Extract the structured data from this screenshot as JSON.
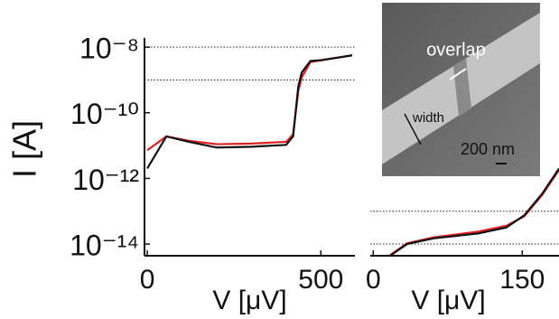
{
  "chart_data": [
    {
      "type": "line",
      "yscale": "log",
      "ylabel": "I [A]",
      "xlabel": "V [μV]",
      "xlim": [
        -8,
        598
      ],
      "xticks": [
        0,
        500
      ],
      "ylim": [
        4.4e-15,
        1.9e-08
      ],
      "yticks": [
        {
          "value": 1e-08,
          "label": "10⁻⁸"
        },
        {
          "value": 1e-10,
          "label": "10⁻¹⁰"
        },
        {
          "value": 1e-12,
          "label": "10⁻¹²"
        },
        {
          "value": 1e-14,
          "label": "10⁻¹⁴"
        }
      ],
      "grid_y": [
        1e-08,
        1e-09
      ],
      "series": [
        {
          "color": "#e02020",
          "x": [
            0,
            55,
            120,
            200,
            300,
            400,
            420,
            435,
            445,
            470,
            590
          ],
          "values": [
            7.2e-12,
            1.9e-11,
            1.4e-11,
            1.1e-11,
            1.15e-11,
            1.3e-11,
            2.2e-11,
            4.6e-10,
            1.2e-09,
            3.5e-09,
            5.6e-09
          ]
        },
        {
          "color": "#111111",
          "x": [
            0,
            55,
            120,
            200,
            300,
            400,
            420,
            435,
            445,
            470,
            500,
            590
          ],
          "values": [
            2e-12,
            1.9e-11,
            1.3e-11,
            8.7e-12,
            9.2e-12,
            1.05e-11,
            1.9e-11,
            6.4e-10,
            1.7e-09,
            3.8e-09,
            4e-09,
            5.6e-09
          ]
        }
      ]
    },
    {
      "type": "line",
      "yscale": "log",
      "xlabel": "V [μV]",
      "xlim": [
        -3,
        187
      ],
      "xticks": [
        0,
        150
      ],
      "ylim": [
        4.4e-15,
        1.9e-08
      ],
      "grid_y": [
        1e-13,
        1e-14
      ],
      "annotations": [
        "overlap",
        "width",
        "200 nm"
      ],
      "series": [
        {
          "color": "#e02020",
          "x": [
            17,
            34,
            61,
            106,
            134,
            152,
            170,
            187
          ],
          "values": [
            4.6e-15,
            1.05e-14,
            1.6e-14,
            2.4e-14,
            3.6e-14,
            7e-14,
            3.1e-13,
            1.8e-12
          ]
        },
        {
          "color": "#111111",
          "x": [
            17,
            34,
            61,
            106,
            134,
            152,
            170,
            187
          ],
          "values": [
            4.4e-15,
            1e-14,
            1.5e-14,
            2.1e-14,
            3.2e-14,
            7.5e-14,
            3.4e-13,
            2e-12
          ]
        }
      ]
    }
  ]
}
